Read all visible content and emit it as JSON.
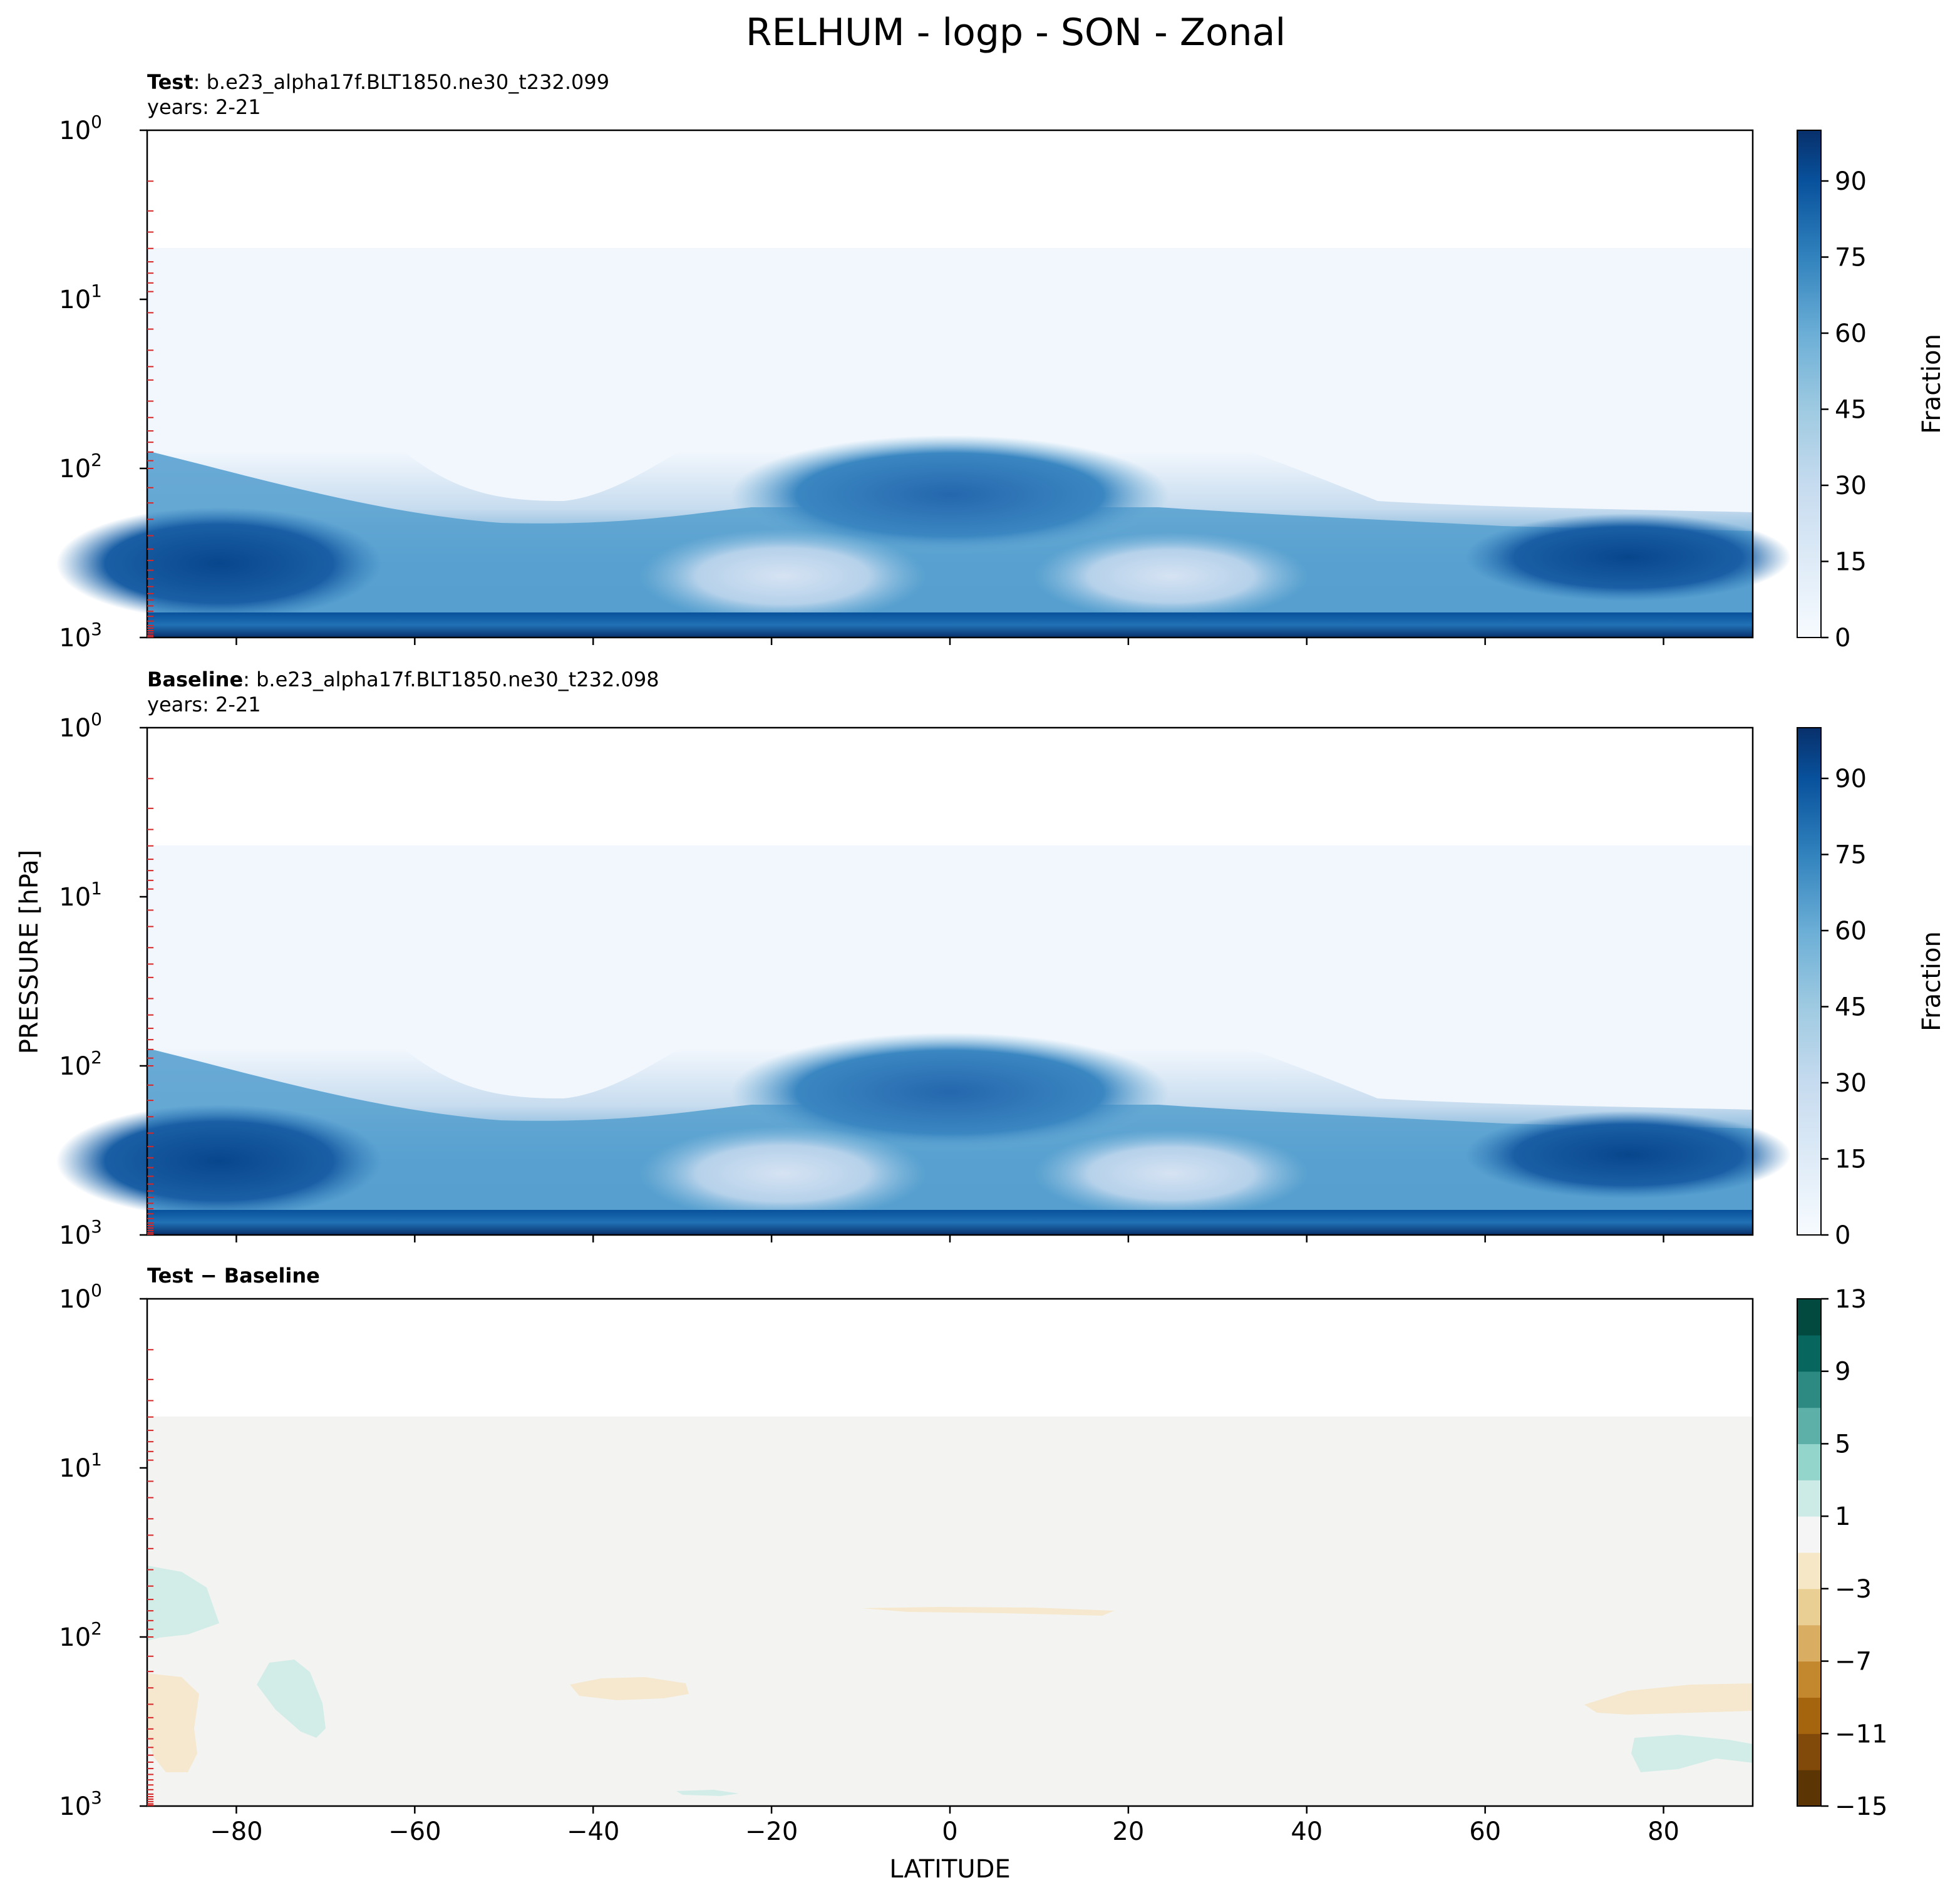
{
  "figure_title": "RELHUM - logp - SON - Zonal",
  "ylabel": "PRESSURE [hPa]",
  "xlabel": "LATITUDE",
  "x_ticks": [
    "−80",
    "−60",
    "−40",
    "−20",
    "0",
    "20",
    "40",
    "60",
    "80"
  ],
  "y_ticks": [
    {
      "base": "10",
      "exp": "0"
    },
    {
      "base": "10",
      "exp": "1"
    },
    {
      "base": "10",
      "exp": "2"
    },
    {
      "base": "10",
      "exp": "3"
    }
  ],
  "panels": [
    {
      "title_bold": "Test",
      "title_text": ": b.e23_alpha17f.BLT1850.ne30_t232.099",
      "years": "years: 2-21",
      "cbar_label": "Fraction",
      "cbar_ticks": [
        "0",
        "15",
        "30",
        "45",
        "60",
        "75",
        "90"
      ]
    },
    {
      "title_bold": "Baseline",
      "title_text": ": b.e23_alpha17f.BLT1850.ne30_t232.098",
      "years": "years: 2-21",
      "cbar_label": "Fraction",
      "cbar_ticks": [
        "0",
        "15",
        "30",
        "45",
        "60",
        "75",
        "90"
      ]
    },
    {
      "title_bold": "Test − Baseline",
      "title_text": "",
      "years": "",
      "cbar_label": "",
      "cbar_ticks": [
        "−15",
        "−11",
        "−7",
        "−3",
        "1",
        "5",
        "9",
        "13"
      ]
    }
  ],
  "chart_data": [
    {
      "type": "heatmap",
      "title": "Test : b.e23_alpha17f.BLT1850.ne30_t232.099",
      "subtitle": "years: 2-21",
      "variable": "RELHUM",
      "x": [
        -90,
        -80,
        -60,
        -40,
        -20,
        -10,
        0,
        10,
        20,
        30,
        40,
        60,
        80,
        90
      ],
      "y_levels_hPa": [
        5,
        10,
        30,
        70,
        100,
        200,
        400,
        600,
        850,
        1000
      ],
      "values": [
        [
          3,
          3,
          2,
          2,
          2,
          2,
          2,
          2,
          2,
          2,
          2,
          2,
          2,
          2
        ],
        [
          20,
          15,
          8,
          3,
          3,
          3,
          3,
          3,
          3,
          3,
          3,
          3,
          3,
          3
        ],
        [
          35,
          30,
          18,
          5,
          5,
          8,
          8,
          8,
          8,
          5,
          5,
          4,
          4,
          4
        ],
        [
          45,
          40,
          25,
          10,
          20,
          45,
          50,
          50,
          45,
          20,
          10,
          6,
          6,
          6
        ],
        [
          55,
          50,
          30,
          15,
          40,
          80,
          85,
          85,
          80,
          40,
          15,
          8,
          8,
          8
        ],
        [
          75,
          65,
          60,
          55,
          45,
          55,
          70,
          75,
          55,
          45,
          55,
          65,
          75,
          85
        ],
        [
          85,
          80,
          70,
          60,
          25,
          35,
          65,
          60,
          25,
          40,
          60,
          75,
          85,
          90
        ],
        [
          82,
          75,
          70,
          60,
          40,
          45,
          60,
          55,
          40,
          45,
          60,
          75,
          80,
          85
        ],
        [
          80,
          78,
          80,
          75,
          75,
          80,
          85,
          85,
          80,
          75,
          75,
          80,
          85,
          85
        ],
        [
          80,
          80,
          85,
          80,
          80,
          82,
          88,
          90,
          85,
          80,
          80,
          85,
          92,
          95
        ]
      ],
      "xlim": [
        -90,
        90
      ],
      "ylim": [
        1000,
        1
      ],
      "y_scale": "log",
      "colormap": "Blues",
      "levels": [
        0,
        5,
        10,
        15,
        20,
        25,
        30,
        35,
        40,
        45,
        50,
        55,
        60,
        65,
        70,
        75,
        80,
        85,
        90,
        95,
        100
      ],
      "colorbar": {
        "label": "Fraction",
        "ticks": [
          0,
          15,
          30,
          45,
          60,
          75,
          90
        ]
      },
      "xlabel": "",
      "ylabel": "PRESSURE [hPa]"
    },
    {
      "type": "heatmap",
      "title": "Baseline : b.e23_alpha17f.BLT1850.ne30_t232.098",
      "subtitle": "years: 2-21",
      "variable": "RELHUM",
      "x": [
        -90,
        -80,
        -60,
        -40,
        -20,
        -10,
        0,
        10,
        20,
        30,
        40,
        60,
        80,
        90
      ],
      "y_levels_hPa": [
        5,
        10,
        30,
        70,
        100,
        200,
        400,
        600,
        850,
        1000
      ],
      "values": [
        [
          3,
          3,
          2,
          2,
          2,
          2,
          2,
          2,
          2,
          2,
          2,
          2,
          2,
          2
        ],
        [
          20,
          15,
          8,
          3,
          3,
          3,
          3,
          3,
          3,
          3,
          3,
          3,
          3,
          3
        ],
        [
          35,
          30,
          18,
          5,
          5,
          8,
          8,
          8,
          8,
          5,
          5,
          4,
          4,
          4
        ],
        [
          45,
          40,
          25,
          10,
          20,
          45,
          50,
          50,
          45,
          20,
          10,
          6,
          6,
          6
        ],
        [
          55,
          50,
          30,
          15,
          40,
          80,
          85,
          85,
          80,
          40,
          15,
          8,
          8,
          8
        ],
        [
          75,
          65,
          60,
          55,
          45,
          55,
          70,
          75,
          55,
          45,
          55,
          65,
          75,
          85
        ],
        [
          85,
          80,
          70,
          60,
          25,
          35,
          65,
          60,
          25,
          40,
          60,
          75,
          85,
          90
        ],
        [
          82,
          75,
          70,
          60,
          40,
          45,
          60,
          55,
          40,
          45,
          60,
          75,
          80,
          85
        ],
        [
          80,
          78,
          80,
          75,
          75,
          80,
          85,
          85,
          80,
          75,
          75,
          80,
          85,
          85
        ],
        [
          80,
          80,
          85,
          80,
          80,
          82,
          88,
          90,
          85,
          80,
          80,
          85,
          92,
          95
        ]
      ],
      "xlim": [
        -90,
        90
      ],
      "ylim": [
        1000,
        1
      ],
      "y_scale": "log",
      "colormap": "Blues",
      "levels": [
        0,
        5,
        10,
        15,
        20,
        25,
        30,
        35,
        40,
        45,
        50,
        55,
        60,
        65,
        70,
        75,
        80,
        85,
        90,
        95,
        100
      ],
      "colorbar": {
        "label": "Fraction",
        "ticks": [
          0,
          15,
          30,
          45,
          60,
          75,
          90
        ]
      },
      "xlabel": "",
      "ylabel": "PRESSURE [hPa]"
    },
    {
      "type": "heatmap",
      "title": "Test − Baseline",
      "variable": "RELHUM difference",
      "x": [
        -90,
        -80,
        -60,
        -40,
        -20,
        -10,
        0,
        10,
        20,
        30,
        40,
        60,
        80,
        90
      ],
      "y_levels_hPa": [
        5,
        10,
        30,
        70,
        100,
        200,
        400,
        600,
        850,
        1000
      ],
      "values": [
        [
          0,
          0,
          0,
          0,
          0,
          0,
          0,
          0,
          0,
          0,
          0,
          0,
          0,
          0
        ],
        [
          0,
          0,
          0,
          0,
          0,
          0,
          0,
          0,
          0,
          0,
          0,
          0,
          0,
          0
        ],
        [
          0,
          0,
          0,
          0,
          0,
          0,
          0,
          0,
          0,
          0,
          0,
          0,
          0,
          0
        ],
        [
          1.5,
          1.5,
          0,
          0,
          0,
          0,
          0,
          0,
          0,
          0,
          0,
          0,
          0,
          0
        ],
        [
          1.5,
          0.5,
          0,
          0,
          0,
          0,
          -1.2,
          -1.2,
          -1.2,
          0,
          0,
          0,
          0,
          0
        ],
        [
          -1.5,
          -1.5,
          1.5,
          0,
          -1.2,
          0,
          0,
          0,
          0,
          0,
          0,
          0,
          0,
          0
        ],
        [
          -1.5,
          -1.5,
          1.5,
          0,
          0,
          0,
          0,
          0,
          0,
          0,
          0,
          -1.2,
          -1.2,
          -1.2
        ],
        [
          -1.5,
          -1.5,
          0,
          0,
          0,
          0,
          0,
          0,
          0,
          0,
          0,
          0,
          1.5,
          1.5
        ],
        [
          0,
          0,
          0,
          0,
          0,
          0,
          0,
          0,
          0,
          0,
          0,
          0,
          0,
          0
        ],
        [
          0,
          0,
          0,
          0,
          0,
          0,
          0,
          0,
          0,
          0,
          0,
          0,
          0,
          0
        ]
      ],
      "xlim": [
        -90,
        90
      ],
      "ylim": [
        1000,
        1
      ],
      "y_scale": "log",
      "colormap": "BrBG",
      "levels": [
        -15,
        -13,
        -11,
        -9,
        -7,
        -5,
        -3,
        -1,
        1,
        3,
        5,
        7,
        9,
        11,
        13
      ],
      "colorbar": {
        "label": "",
        "ticks": [
          -15,
          -11,
          -7,
          -3,
          1,
          5,
          9,
          13
        ]
      },
      "xlabel": "LATITUDE",
      "ylabel": "PRESSURE [hPa]"
    }
  ]
}
